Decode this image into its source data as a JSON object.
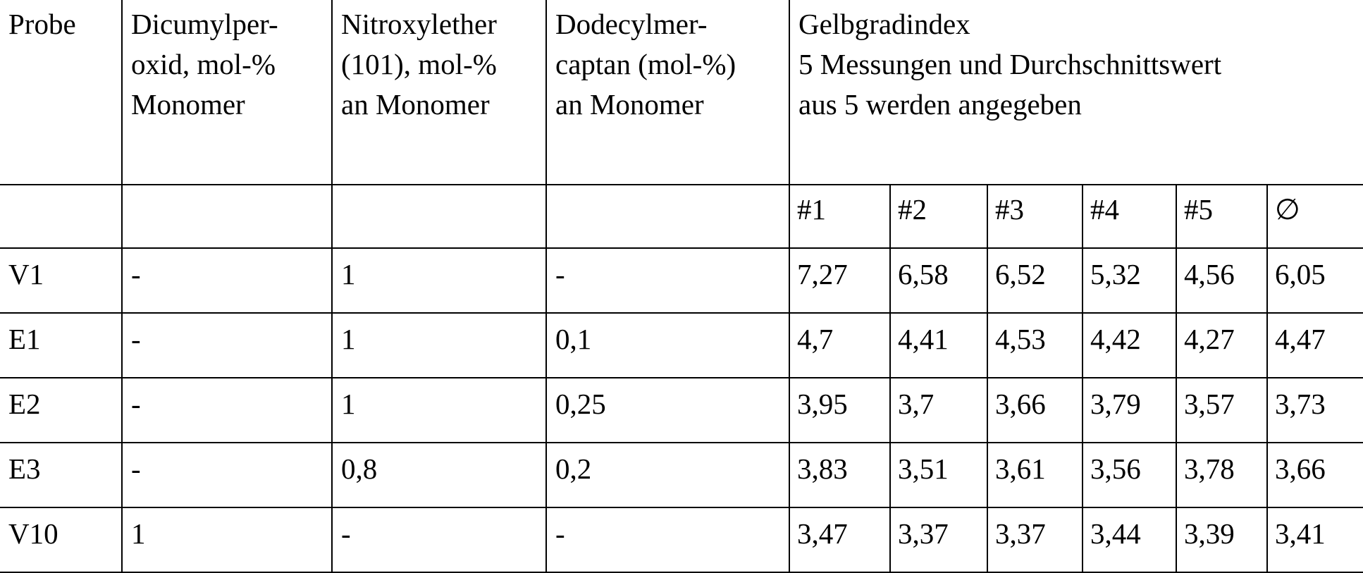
{
  "table": {
    "headers": {
      "probe": "Probe",
      "dicumyl": [
        "Dicumylper-",
        "oxid, mol-%",
        "Monomer"
      ],
      "nitroxyl": [
        "Nitroxylether",
        "(101), mol-%",
        "an Monomer"
      ],
      "dodecyl": [
        "Dodecylmer-",
        "captan (mol-%)",
        "an Monomer"
      ],
      "gelb": [
        "Gelbgradindex",
        "5 Messungen und Durchschnittswert",
        "aus 5 werden angegeben"
      ]
    },
    "subheaders": [
      "#1",
      "#2",
      "#3",
      "#4",
      "#5",
      "∅"
    ],
    "rows": [
      {
        "probe": "V1",
        "dicumyl": "-",
        "nitroxyl": "1",
        "dodecyl": "-",
        "m": [
          "7,27",
          "6,58",
          "6,52",
          "5,32",
          "4,56",
          "6,05"
        ]
      },
      {
        "probe": "E1",
        "dicumyl": "-",
        "nitroxyl": "1",
        "dodecyl": "0,1",
        "m": [
          "4,7",
          "4,41",
          "4,53",
          "4,42",
          "4,27",
          "4,47"
        ]
      },
      {
        "probe": "E2",
        "dicumyl": "-",
        "nitroxyl": "1",
        "dodecyl": "0,25",
        "m": [
          "3,95",
          "3,7",
          "3,66",
          "3,79",
          "3,57",
          "3,73"
        ]
      },
      {
        "probe": "E3",
        "dicumyl": "-",
        "nitroxyl": "0,8",
        "dodecyl": "0,2",
        "m": [
          "3,83",
          "3,51",
          "3,61",
          "3,56",
          "3,78",
          "3,66"
        ]
      },
      {
        "probe": "V10",
        "dicumyl": "1",
        "nitroxyl": "-",
        "dodecyl": "-",
        "m": [
          "3,47",
          "3,37",
          "3,37",
          "3,44",
          "3,39",
          "3,41"
        ]
      }
    ]
  }
}
